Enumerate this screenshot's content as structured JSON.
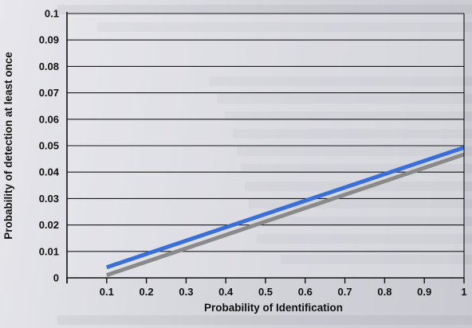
{
  "chart_data": {
    "type": "line",
    "title": "",
    "xlabel": "Probability of Identification",
    "ylabel": "Probability of detection at least once",
    "xlim": [
      0,
      1.0
    ],
    "ylim": [
      0,
      0.1
    ],
    "x_ticks": [
      "0",
      "0.1",
      "0.2",
      "0.3",
      "0.4",
      "0.5",
      "0.6",
      "0.7",
      "0.8",
      "0.9",
      "1"
    ],
    "y_ticks": [
      "0",
      "0.01",
      "0.02",
      "0.03",
      "0.04",
      "0.05",
      "0.06",
      "0.07",
      "0.08",
      "0.09",
      "0.1"
    ],
    "grid": "horizontal",
    "legend": "none",
    "series": [
      {
        "color": "#3a6fd8",
        "x": [
          0.1,
          1.0
        ],
        "y": [
          0.004,
          0.0493
        ]
      },
      {
        "color": "#8a8a8a",
        "x": [
          0.1,
          1.0
        ],
        "y": [
          0.001,
          0.0467
        ]
      }
    ]
  }
}
